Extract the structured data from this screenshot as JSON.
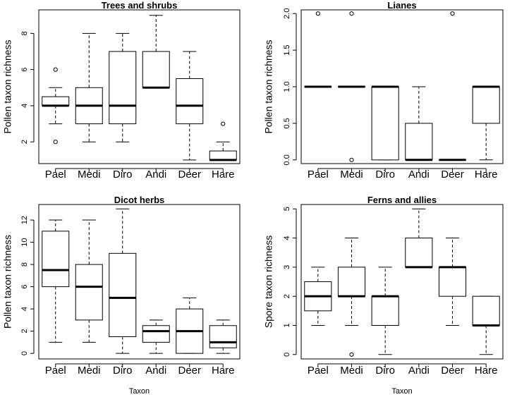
{
  "chart_data": [
    {
      "type": "boxplot",
      "title": "Trees and shrubs",
      "ylabel": "Pollen taxon richness",
      "xlabel": "",
      "ylim": [
        0.8,
        9.3
      ],
      "yticks": [
        2,
        4,
        6,
        8
      ],
      "categories": [
        "Pael",
        "Medi",
        "Diro",
        "Andi",
        "Deer",
        "Hare"
      ],
      "boxes": [
        {
          "min": 3,
          "q1": 4,
          "median": 4,
          "q3": 4.5,
          "max": 5,
          "outliers": [
            6,
            2
          ]
        },
        {
          "min": 2,
          "q1": 3,
          "median": 4,
          "q3": 5,
          "max": 8,
          "outliers": []
        },
        {
          "min": 2,
          "q1": 3,
          "median": 4,
          "q3": 7,
          "max": 8,
          "outliers": []
        },
        {
          "min": 5,
          "q1": 5,
          "median": 5,
          "q3": 7,
          "max": 9,
          "outliers": []
        },
        {
          "min": 1,
          "q1": 3,
          "median": 4,
          "q3": 5.5,
          "max": 7,
          "outliers": []
        },
        {
          "min": 1,
          "q1": 1,
          "median": 1,
          "q3": 1.5,
          "max": 2,
          "outliers": [
            3
          ]
        }
      ]
    },
    {
      "type": "boxplot",
      "title": "Lianes",
      "ylabel": "Pollen taxon richness",
      "xlabel": "",
      "ylim": [
        -0.05,
        2.05
      ],
      "yticks": [
        "0.0",
        "0.5",
        "1.0",
        "1.5",
        "2.0"
      ],
      "categories": [
        "Pael",
        "Medi",
        "Diro",
        "Andi",
        "Deer",
        "Hare"
      ],
      "boxes": [
        {
          "min": 1,
          "q1": 1,
          "median": 1,
          "q3": 1,
          "max": 1,
          "outliers": [
            2
          ]
        },
        {
          "min": 1,
          "q1": 1,
          "median": 1,
          "q3": 1,
          "max": 1,
          "outliers": [
            2,
            0
          ]
        },
        {
          "min": 0,
          "q1": 0,
          "median": 1,
          "q3": 1,
          "max": 1,
          "outliers": []
        },
        {
          "min": 0,
          "q1": 0,
          "median": 0,
          "q3": 0.5,
          "max": 1,
          "outliers": []
        },
        {
          "min": 0,
          "q1": 0,
          "median": 0,
          "q3": 0,
          "max": 0,
          "outliers": [
            2
          ]
        },
        {
          "min": 0,
          "q1": 0.5,
          "median": 1,
          "q3": 1,
          "max": 1,
          "outliers": []
        }
      ]
    },
    {
      "type": "boxplot",
      "title": "Dicot herbs",
      "ylabel": "Pollen taxon richness",
      "xlabel": "Taxon",
      "ylim": [
        -0.5,
        13.4
      ],
      "yticks": [
        0,
        2,
        4,
        6,
        8,
        10,
        12
      ],
      "categories": [
        "Pael",
        "Medi",
        "Diro",
        "Andi",
        "Deer",
        "Hare"
      ],
      "boxes": [
        {
          "min": 1,
          "q1": 6,
          "median": 7.5,
          "q3": 11,
          "max": 12,
          "outliers": []
        },
        {
          "min": 1,
          "q1": 3,
          "median": 6,
          "q3": 8,
          "max": 12,
          "outliers": []
        },
        {
          "min": 0,
          "q1": 1.5,
          "median": 5,
          "q3": 9,
          "max": 13,
          "outliers": []
        },
        {
          "min": 0,
          "q1": 1,
          "median": 2,
          "q3": 2.5,
          "max": 3,
          "outliers": []
        },
        {
          "min": 0,
          "q1": 0,
          "median": 2,
          "q3": 4,
          "max": 5,
          "outliers": []
        },
        {
          "min": 0,
          "q1": 0.5,
          "median": 1,
          "q3": 2.5,
          "max": 3,
          "outliers": []
        }
      ]
    },
    {
      "type": "boxplot",
      "title": "Ferns and allies",
      "ylabel": "Spore taxon richness",
      "xlabel": "Taxon",
      "ylim": [
        -0.15,
        5.15
      ],
      "yticks": [
        0,
        1,
        2,
        3,
        4,
        5
      ],
      "categories": [
        "Pael",
        "Medi",
        "Diro",
        "Andi",
        "Deer",
        "Hare"
      ],
      "boxes": [
        {
          "min": 1,
          "q1": 1.5,
          "median": 2,
          "q3": 2.5,
          "max": 3,
          "outliers": []
        },
        {
          "min": 1,
          "q1": 2,
          "median": 2,
          "q3": 3,
          "max": 4,
          "outliers": [
            0
          ]
        },
        {
          "min": 0,
          "q1": 1,
          "median": 2,
          "q3": 2,
          "max": 3,
          "outliers": []
        },
        {
          "min": 3,
          "q1": 3,
          "median": 3,
          "q3": 4,
          "max": 5,
          "outliers": []
        },
        {
          "min": 1,
          "q1": 2,
          "median": 3,
          "q3": 3,
          "max": 4,
          "outliers": []
        },
        {
          "min": 0,
          "q1": 1,
          "median": 1,
          "q3": 2,
          "max": 2,
          "outliers": []
        }
      ]
    }
  ]
}
